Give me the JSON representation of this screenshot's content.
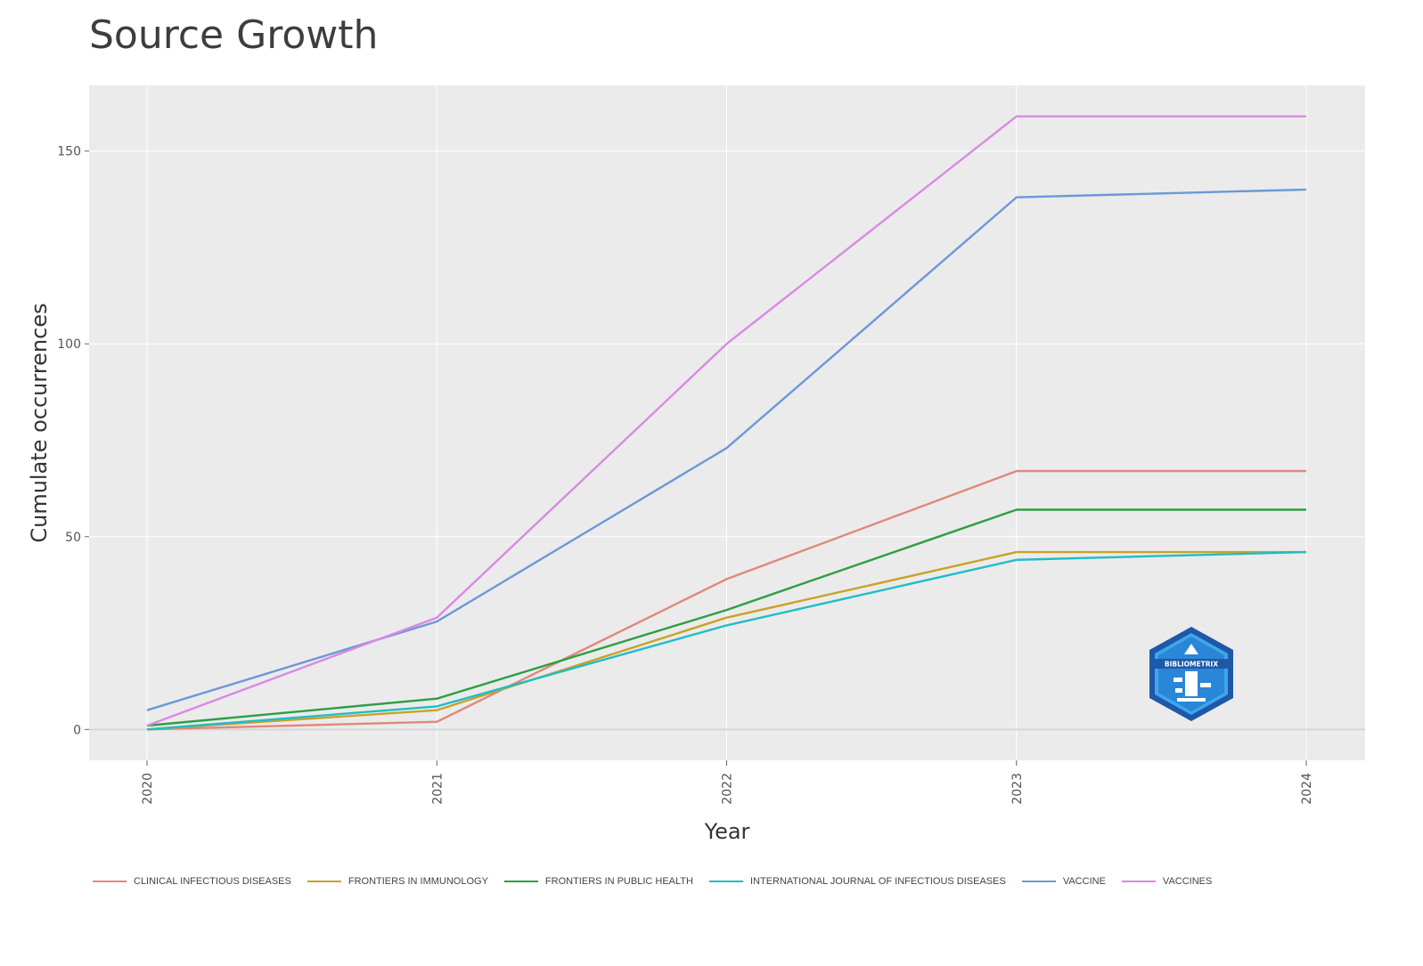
{
  "chart_data": {
    "type": "line",
    "title": "Source Growth",
    "xlabel": "Year",
    "ylabel": "Cumulate occurrences",
    "x": [
      "2020",
      "2021",
      "2022",
      "2023",
      "2024"
    ],
    "yticks": [
      0,
      50,
      100,
      150
    ],
    "ylim": [
      -8,
      167
    ],
    "grid": true,
    "legend_position": "bottom",
    "series": [
      {
        "name": "CLINICAL INFECTIOUS DISEASES",
        "color": "#e0887a",
        "values": [
          0,
          2,
          39,
          67,
          67
        ]
      },
      {
        "name": "FRONTIERS IN IMMUNOLOGY",
        "color": "#c9a227",
        "values": [
          0,
          5,
          29,
          46,
          46
        ]
      },
      {
        "name": "FRONTIERS IN PUBLIC HEALTH",
        "color": "#2e9e44",
        "values": [
          1,
          8,
          31,
          57,
          57
        ]
      },
      {
        "name": "INTERNATIONAL JOURNAL OF INFECTIOUS DISEASES",
        "color": "#1fbdc6",
        "values": [
          0,
          6,
          27,
          44,
          46
        ]
      },
      {
        "name": "VACCINE",
        "color": "#6c98d8",
        "values": [
          5,
          28,
          73,
          138,
          140
        ]
      },
      {
        "name": "VACCINES",
        "color": "#d98ae3",
        "values": [
          1,
          29,
          100,
          159,
          159
        ]
      }
    ]
  },
  "watermark": {
    "label": "BIBLIOMETRIX",
    "icon": "bibliometrix-logo"
  }
}
